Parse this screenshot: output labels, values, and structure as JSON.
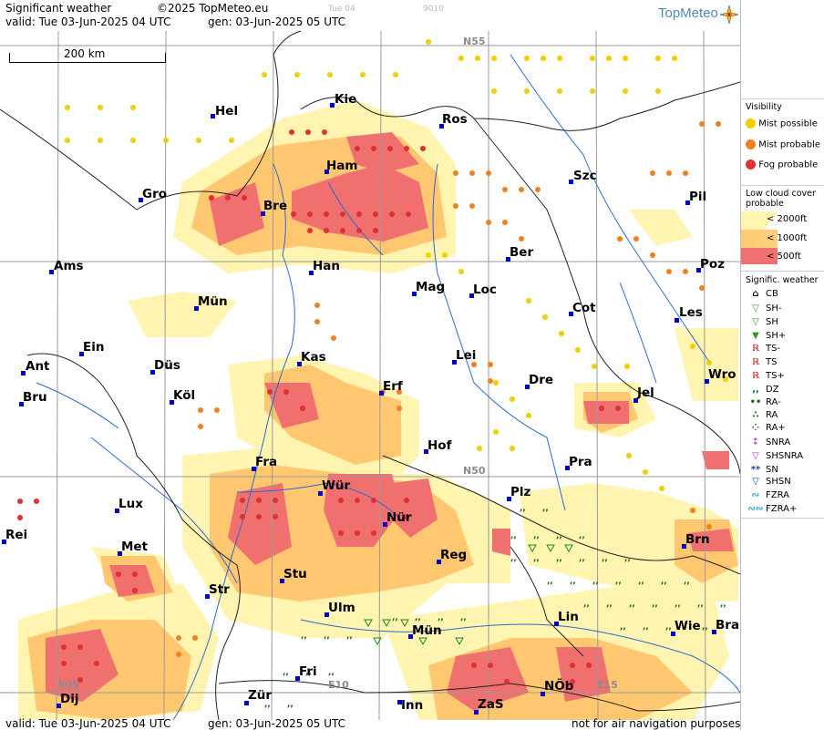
{
  "header": {
    "title": "Significant weather",
    "copyright": "©2025 TopMeteo.eu",
    "valid": "valid:  Tue  03-Jun-2025  04 UTC",
    "gen": "gen:  03-Jun-2025  05 UTC",
    "faint_day": "Tue 04",
    "faint_code": "9010",
    "logo": "TopMeteo",
    "scale": "200 km"
  },
  "footer": {
    "valid": "valid:  Tue  03-Jun-2025  04 UTC",
    "gen": "gen:  03-Jun-2025  05 UTC",
    "disclaimer": "not for air navigation purposes"
  },
  "grid_labels": {
    "n55": "N55",
    "n50": "N50",
    "e05": "E05",
    "e10": "E10",
    "e15": "E15"
  },
  "cities": [
    "Hel",
    "Kie",
    "Ros",
    "Ham",
    "Szc",
    "Gro",
    "Bre",
    "Pil",
    "Ber",
    "Ams",
    "Han",
    "Poz",
    "Mag",
    "Loc",
    "Mün",
    "Cot",
    "Les",
    "Ein",
    "Lei",
    "Kas",
    "Ant",
    "Düs",
    "Wro",
    "Dre",
    "Bru",
    "Köl",
    "Erf",
    "Jel",
    "Hof",
    "Fra",
    "Pra",
    "Lux",
    "Würz",
    "Plz",
    "Rei",
    "Nür",
    "Met",
    "Reg",
    "Brn",
    "Stu",
    "Str",
    "Ulm",
    "Lin",
    "Wie",
    "Bra",
    "Mün2",
    "Fri",
    "Zür",
    "Inn",
    "ZaS",
    "NÖb",
    "Dij"
  ],
  "city_labels": {
    "Hel": "Hel",
    "Kie": "Kie",
    "Ros": "Ros",
    "Ham": "Ham",
    "Szc": "Szc",
    "Gro": "Gro",
    "Bre": "Bre",
    "Pil": "Pil",
    "Ber": "Ber",
    "Ams": "Ams",
    "Han": "Han",
    "Poz": "Poz",
    "Mag": "Mag",
    "Loc": "Loc",
    "Mün": "Mün",
    "Cot": "Cot",
    "Les": "Les",
    "Ein": "Ein",
    "Lei": "Lei",
    "Kas": "Kas",
    "Ant": "Ant",
    "Düs": "Düs",
    "Wro": "Wro",
    "Dre": "Dre",
    "Bru": "Bru",
    "Köl": "Köl",
    "Erf": "Erf",
    "Jel": "Jel",
    "Hof": "Hof",
    "Fra": "Fra",
    "Pra": "Pra",
    "Lux": "Lux",
    "Würz": "Wür",
    "Plz": "Plz",
    "Rei": "Rei",
    "Nür": "Nür",
    "Met": "Met",
    "Reg": "Reg",
    "Brn": "Brn",
    "Stu": "Stu",
    "Str": "Str",
    "Ulm": "Ulm",
    "Lin": "Lin",
    "Wie": "Wie",
    "Bra": "Bra",
    "Mün2": "Mün",
    "Fri": "Fri",
    "Zür": "Zür",
    "Inn": "Inn",
    "ZaS": "ZaS",
    "NÖb": "NÖb",
    "Dij": "Dij"
  },
  "legend": {
    "visibility_title": "Visibility",
    "mist_possible": "Mist possible",
    "mist_probable": "Mist probable",
    "fog_probable": "Fog probable",
    "lowcloud_title": "Low cloud cover probable",
    "lc_2000": "<  2000ft",
    "lc_1000": "<  1000ft",
    "lc_500": "<    500ft",
    "sigwx_title": "Signific. weather",
    "items": [
      "CB",
      "SH-",
      "SH",
      "SH+",
      "TS-",
      "TS",
      "TS+",
      "DZ",
      "RA-",
      "RA",
      "RA+",
      "SNRA",
      "SHSNRA",
      "SN",
      "SHSN",
      "FZRA",
      "FZRA+"
    ]
  },
  "colors": {
    "lc_2000": "#fff4b0",
    "lc_1000": "#ffc870",
    "lc_500": "#f07070",
    "fog": "#e03030",
    "mist_probable": "#f08020",
    "mist_possible": "#f0d000",
    "rivers": "#2a6ad0",
    "grid": "#9a9a9a"
  }
}
